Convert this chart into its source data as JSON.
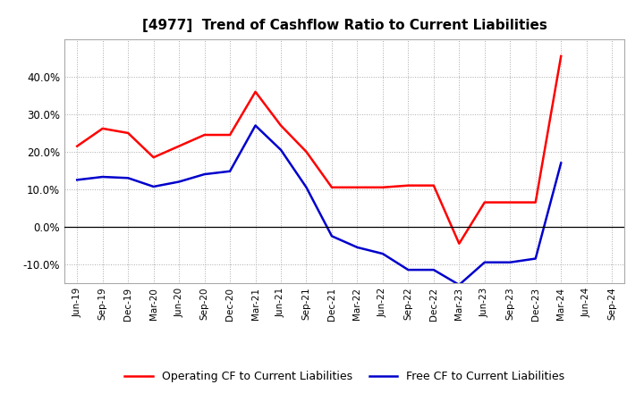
{
  "title": "[4977]  Trend of Cashflow Ratio to Current Liabilities",
  "x_labels": [
    "Jun-19",
    "Sep-19",
    "Dec-19",
    "Mar-20",
    "Jun-20",
    "Sep-20",
    "Dec-20",
    "Mar-21",
    "Jun-21",
    "Sep-21",
    "Dec-21",
    "Mar-22",
    "Jun-22",
    "Sep-22",
    "Dec-22",
    "Mar-23",
    "Jun-23",
    "Sep-23",
    "Dec-23",
    "Mar-24",
    "Jun-24",
    "Sep-24"
  ],
  "operating_cf": [
    0.215,
    0.262,
    0.25,
    0.185,
    0.215,
    0.245,
    0.245,
    0.36,
    0.27,
    0.2,
    0.105,
    0.105,
    0.105,
    0.11,
    0.11,
    -0.045,
    0.065,
    0.065,
    0.065,
    0.455,
    null,
    null
  ],
  "free_cf": [
    0.125,
    0.133,
    0.13,
    0.107,
    0.12,
    0.14,
    0.148,
    0.27,
    0.205,
    0.105,
    -0.025,
    -0.055,
    -0.072,
    -0.115,
    -0.115,
    -0.155,
    -0.095,
    -0.095,
    -0.085,
    0.17,
    null,
    null
  ],
  "operating_color": "#ff0000",
  "free_color": "#0000cc",
  "ylim": [
    -0.15,
    0.5
  ],
  "yticks": [
    -0.1,
    0.0,
    0.1,
    0.2,
    0.3,
    0.4
  ],
  "background_color": "#ffffff",
  "grid_color": "#aaaaaa",
  "legend_operating": "Operating CF to Current Liabilities",
  "legend_free": "Free CF to Current Liabilities"
}
